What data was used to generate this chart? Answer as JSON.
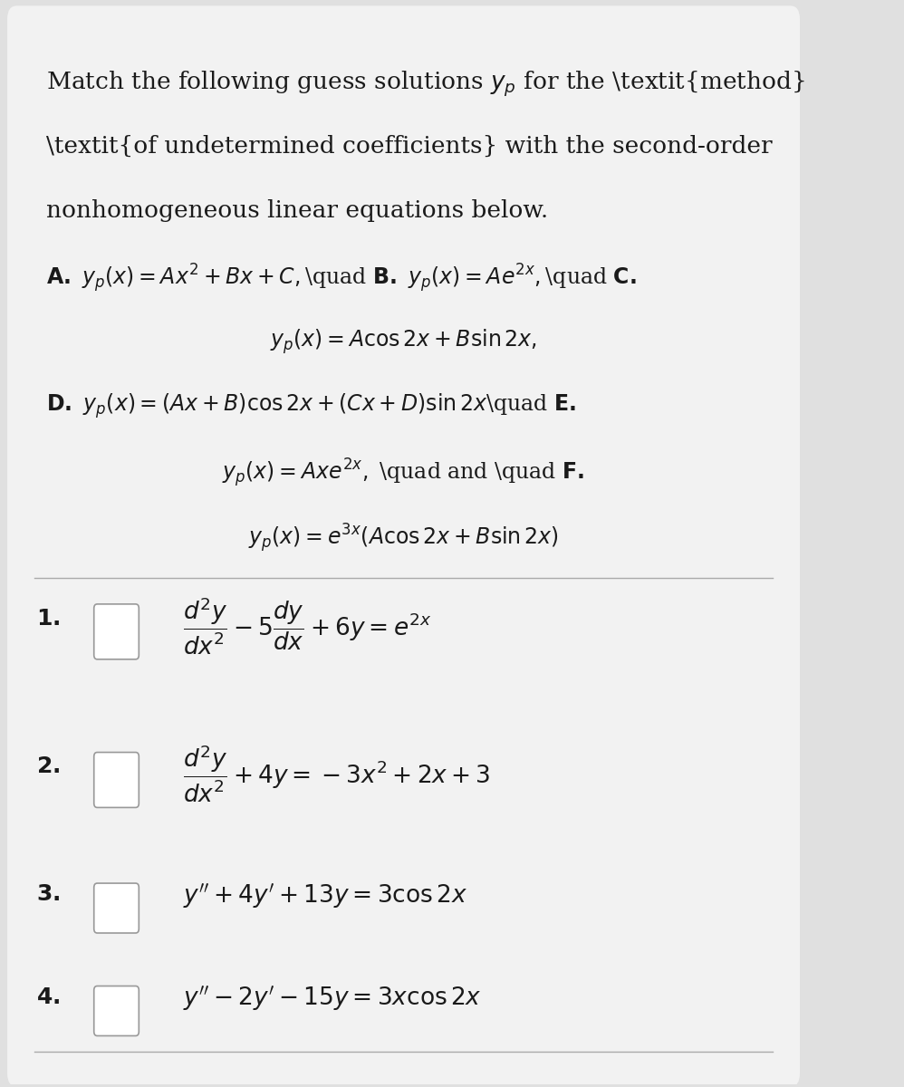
{
  "bg_color": "#e0e0e0",
  "card_color": "#f2f2f2",
  "text_color": "#1a1a1a",
  "line_color": "#aaaaaa",
  "box_edge_color": "#999999",
  "fs_title": 19,
  "fs_opt": 17,
  "fs_eq": 18
}
